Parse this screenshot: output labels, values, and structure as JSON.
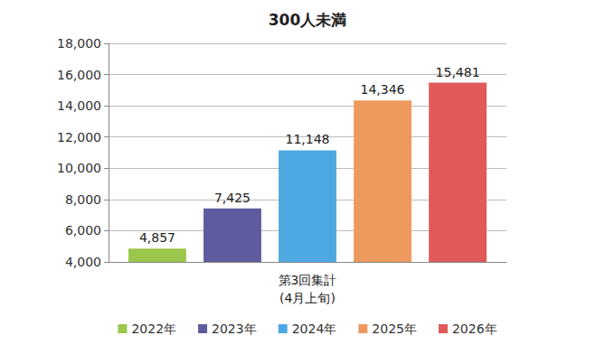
{
  "chart_data": {
    "type": "bar",
    "title": "300人未満",
    "categories": [
      "第3回集計\n(4月上旬)"
    ],
    "series": [
      {
        "name": "2022年",
        "color": "#9cc64c",
        "values": [
          4857
        ],
        "value_labels": [
          "4,857"
        ]
      },
      {
        "name": "2023年",
        "color": "#5f5b9f",
        "values": [
          7425
        ],
        "value_labels": [
          "7,425"
        ]
      },
      {
        "name": "2024年",
        "color": "#4ea8e2",
        "values": [
          11148
        ],
        "value_labels": [
          "11,148"
        ]
      },
      {
        "name": "2025年",
        "color": "#ee9a5e",
        "values": [
          14346
        ],
        "value_labels": [
          "14,346"
        ]
      },
      {
        "name": "2026年",
        "color": "#e05a5a",
        "values": [
          15481
        ],
        "value_labels": [
          "15,481"
        ]
      }
    ],
    "ylim": [
      4000,
      18000
    ],
    "yticks": [
      {
        "value": 4000,
        "label": "4,000"
      },
      {
        "value": 6000,
        "label": "6,000"
      },
      {
        "value": 8000,
        "label": "8,000"
      },
      {
        "value": 10000,
        "label": "10,000"
      },
      {
        "value": 12000,
        "label": "12,000"
      },
      {
        "value": 14000,
        "label": "14,000"
      },
      {
        "value": 16000,
        "label": "16,000"
      },
      {
        "value": 18000,
        "label": "18,000"
      }
    ],
    "grid": true,
    "legend": "bottom",
    "data_labels": true
  }
}
